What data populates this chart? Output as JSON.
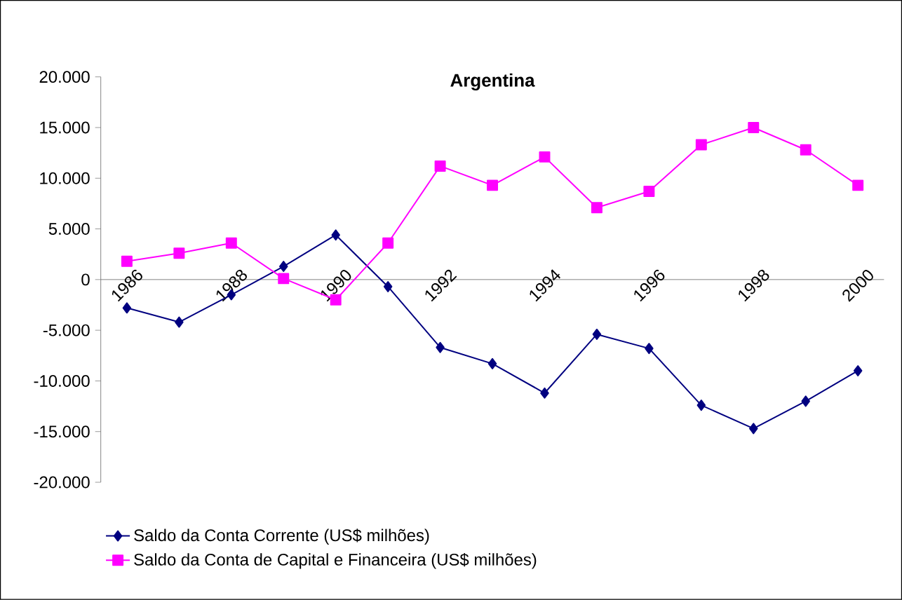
{
  "chart_data": {
    "type": "line",
    "title": "Argentina",
    "categories": [
      "1986",
      null,
      "1988",
      null,
      "1990",
      null,
      "1992",
      null,
      "1994",
      null,
      "1996",
      null,
      "1998",
      null,
      "2000"
    ],
    "series": [
      {
        "name": "Saldo da Conta Corrente (US$ milhões)",
        "color": "#000080",
        "marker": "diamond",
        "values": [
          -2800,
          -4200,
          -1500,
          1300,
          4400,
          -700,
          -6700,
          -8300,
          -11200,
          -5400,
          -6800,
          -12400,
          -14700,
          -12000,
          -9000
        ]
      },
      {
        "name": "Saldo da Conta de Capital e Financeira (US$ milhões)",
        "color": "#ff00ff",
        "marker": "square",
        "values": [
          1800,
          2600,
          3600,
          100,
          -2000,
          3600,
          11200,
          9300,
          12100,
          7100,
          8700,
          13300,
          15000,
          12800,
          9300
        ]
      }
    ],
    "ylim": [
      -20000,
      20000
    ],
    "yticks": [
      {
        "value": -20000,
        "label": "-20.000"
      },
      {
        "value": -15000,
        "label": "-15.000"
      },
      {
        "value": -10000,
        "label": "-10.000"
      },
      {
        "value": -5000,
        "label": "-5.000"
      },
      {
        "value": 0,
        "label": "0"
      },
      {
        "value": 5000,
        "label": "5.000"
      },
      {
        "value": 10000,
        "label": "10.000"
      },
      {
        "value": 15000,
        "label": "15.000"
      },
      {
        "value": 20000,
        "label": "20.000"
      }
    ],
    "legend": "bottom",
    "grid": false
  }
}
